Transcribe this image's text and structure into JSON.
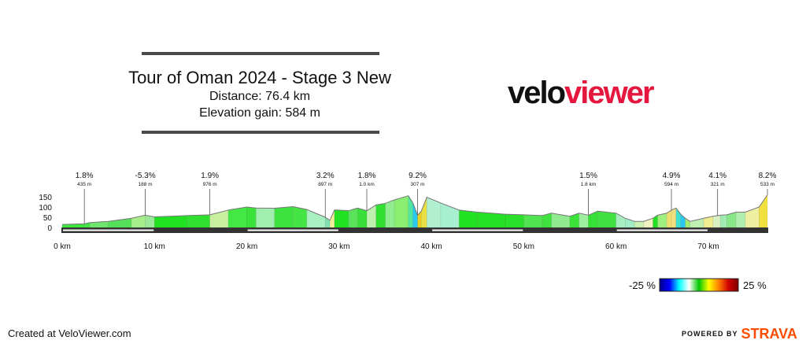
{
  "header": {
    "title": "Tour of Oman 2024 - Stage 3 New",
    "distance": "Distance: 76.4 km",
    "elevation_gain": "Elevation gain: 584 m"
  },
  "logo": {
    "part1": "velo",
    "part2": "viewer"
  },
  "footer": {
    "created": "Created at VeloViewer.com",
    "powered": "POWERED BY",
    "brand": "STRAVA"
  },
  "colors": {
    "logo_red": "#e5173f",
    "strava_orange": "#fc4c02",
    "axis": "#333333"
  },
  "gradient_legend": {
    "min_label": "-25 %",
    "max_label": "25 %"
  },
  "chart_data": {
    "type": "area",
    "title": "Tour of Oman 2024 - Stage 3 New",
    "xlabel": "",
    "ylabel": "",
    "xlim": [
      0,
      76.4
    ],
    "ylim": [
      0,
      150
    ],
    "y_ticks": [
      "0",
      "50",
      "100",
      "150"
    ],
    "x_ticks": [
      {
        "v": 0,
        "label": "0 km"
      },
      {
        "v": 10,
        "label": "10 km"
      },
      {
        "v": 20,
        "label": "20 km"
      },
      {
        "v": 30,
        "label": "30 km"
      },
      {
        "v": 40,
        "label": "40 km"
      },
      {
        "v": 50,
        "label": "50 km"
      },
      {
        "v": 60,
        "label": "60 km"
      },
      {
        "v": 70,
        "label": "70 km"
      }
    ],
    "points": [
      [
        0,
        15
      ],
      [
        2.4,
        18
      ],
      [
        3,
        24
      ],
      [
        5,
        30
      ],
      [
        7.5,
        45
      ],
      [
        9,
        60
      ],
      [
        10,
        52
      ],
      [
        13.5,
        58
      ],
      [
        16,
        62
      ],
      [
        18,
        85
      ],
      [
        20,
        100
      ],
      [
        21,
        95
      ],
      [
        23,
        94
      ],
      [
        25,
        102
      ],
      [
        26.5,
        88
      ],
      [
        28.5,
        50
      ],
      [
        29,
        35
      ],
      [
        29.5,
        86
      ],
      [
        31,
        82
      ],
      [
        32,
        95
      ],
      [
        33,
        82
      ],
      [
        34,
        110
      ],
      [
        35,
        118
      ],
      [
        36,
        135
      ],
      [
        37.5,
        155
      ],
      [
        38,
        120
      ],
      [
        38.5,
        60
      ],
      [
        38.9,
        80
      ],
      [
        39.5,
        148
      ],
      [
        41,
        120
      ],
      [
        43,
        85
      ],
      [
        45,
        75
      ],
      [
        48,
        65
      ],
      [
        50,
        62
      ],
      [
        52,
        58
      ],
      [
        53,
        70
      ],
      [
        55,
        55
      ],
      [
        56,
        70
      ],
      [
        57,
        60
      ],
      [
        58,
        80
      ],
      [
        60,
        70
      ],
      [
        61,
        45
      ],
      [
        62,
        30
      ],
      [
        63,
        30
      ],
      [
        64,
        45
      ],
      [
        64.5,
        60
      ],
      [
        65.5,
        70
      ],
      [
        66,
        85
      ],
      [
        66.5,
        95
      ],
      [
        67,
        65
      ],
      [
        67.5,
        45
      ],
      [
        68,
        30
      ],
      [
        69.5,
        45
      ],
      [
        70.5,
        55
      ],
      [
        71.3,
        60
      ],
      [
        72,
        62
      ],
      [
        73,
        75
      ],
      [
        74,
        75
      ],
      [
        75.5,
        100
      ],
      [
        76.4,
        160
      ]
    ],
    "segments": [
      {
        "x0": 0,
        "x1": 2.4,
        "color": "#3ce63c"
      },
      {
        "x0": 2.4,
        "x1": 3,
        "color": "#40e642"
      },
      {
        "x0": 3,
        "x1": 5,
        "color": "#6ee66e"
      },
      {
        "x0": 5,
        "x1": 7.5,
        "color": "#55e05a"
      },
      {
        "x0": 7.5,
        "x1": 9,
        "color": "#a6ee8a"
      },
      {
        "x0": 9,
        "x1": 10,
        "color": "#9be89a"
      },
      {
        "x0": 10,
        "x1": 13.5,
        "color": "#22e022"
      },
      {
        "x0": 13.5,
        "x1": 16,
        "color": "#30e030"
      },
      {
        "x0": 16,
        "x1": 18,
        "color": "#c8f0a0"
      },
      {
        "x0": 18,
        "x1": 20,
        "color": "#44e844"
      },
      {
        "x0": 20,
        "x1": 21,
        "color": "#3ae23a"
      },
      {
        "x0": 21,
        "x1": 23,
        "color": "#a0eeb0"
      },
      {
        "x0": 23,
        "x1": 25,
        "color": "#3ee23e"
      },
      {
        "x0": 25,
        "x1": 26.5,
        "color": "#44e444"
      },
      {
        "x0": 26.5,
        "x1": 28.5,
        "color": "#a8f0c0"
      },
      {
        "x0": 28.5,
        "x1": 29,
        "color": "#7ee0b0"
      },
      {
        "x0": 29,
        "x1": 29.5,
        "color": "#f0ee9a"
      },
      {
        "x0": 29.5,
        "x1": 31,
        "color": "#22e022"
      },
      {
        "x0": 31,
        "x1": 32,
        "color": "#5ae25a"
      },
      {
        "x0": 32,
        "x1": 33,
        "color": "#3ae03a"
      },
      {
        "x0": 33,
        "x1": 34,
        "color": "#c0f0b0"
      },
      {
        "x0": 34,
        "x1": 35,
        "color": "#30e030"
      },
      {
        "x0": 35,
        "x1": 36,
        "color": "#90ee90"
      },
      {
        "x0": 36,
        "x1": 37.5,
        "color": "#8aee70"
      },
      {
        "x0": 37.5,
        "x1": 38,
        "color": "#50e8a0"
      },
      {
        "x0": 38,
        "x1": 38.5,
        "color": "#28c8f0"
      },
      {
        "x0": 38.5,
        "x1": 38.9,
        "color": "#e8d020"
      },
      {
        "x0": 38.9,
        "x1": 39.5,
        "color": "#e8e040"
      },
      {
        "x0": 39.5,
        "x1": 41,
        "color": "#b0f0d0"
      },
      {
        "x0": 41,
        "x1": 43,
        "color": "#a8eed0"
      },
      {
        "x0": 43,
        "x1": 45,
        "color": "#22e022"
      },
      {
        "x0": 45,
        "x1": 48,
        "color": "#26e026"
      },
      {
        "x0": 48,
        "x1": 50,
        "color": "#2ae02a"
      },
      {
        "x0": 50,
        "x1": 52,
        "color": "#50e450"
      },
      {
        "x0": 52,
        "x1": 53,
        "color": "#40e240"
      },
      {
        "x0": 53,
        "x1": 55,
        "color": "#90ea90"
      },
      {
        "x0": 55,
        "x1": 56,
        "color": "#3ae23a"
      },
      {
        "x0": 56,
        "x1": 57,
        "color": "#a0eea0"
      },
      {
        "x0": 57,
        "x1": 58,
        "color": "#36e036"
      },
      {
        "x0": 58,
        "x1": 60,
        "color": "#40e040"
      },
      {
        "x0": 60,
        "x1": 61,
        "color": "#a8eec0"
      },
      {
        "x0": 61,
        "x1": 62,
        "color": "#a0eec8"
      },
      {
        "x0": 62,
        "x1": 63,
        "color": "#c8f0b0"
      },
      {
        "x0": 63,
        "x1": 64,
        "color": "#f0f0c0"
      },
      {
        "x0": 64,
        "x1": 64.5,
        "color": "#22e022"
      },
      {
        "x0": 64.5,
        "x1": 65.5,
        "color": "#a0ee80"
      },
      {
        "x0": 65.5,
        "x1": 66,
        "color": "#f0e070"
      },
      {
        "x0": 66,
        "x1": 66.5,
        "color": "#f0e080"
      },
      {
        "x0": 66.5,
        "x1": 67,
        "color": "#40e0d0"
      },
      {
        "x0": 67,
        "x1": 67.5,
        "color": "#28c8f0"
      },
      {
        "x0": 67.5,
        "x1": 68,
        "color": "#a0ec70"
      },
      {
        "x0": 68,
        "x1": 69.5,
        "color": "#c0f0b0"
      },
      {
        "x0": 69.5,
        "x1": 70.5,
        "color": "#f0ec90"
      },
      {
        "x0": 70.5,
        "x1": 71.3,
        "color": "#d8f0c0"
      },
      {
        "x0": 71.3,
        "x1": 72,
        "color": "#a0ecb0"
      },
      {
        "x0": 72,
        "x1": 73,
        "color": "#88e888"
      },
      {
        "x0": 73,
        "x1": 74,
        "color": "#b0eeb0"
      },
      {
        "x0": 74,
        "x1": 75.5,
        "color": "#eef0a0"
      },
      {
        "x0": 75.5,
        "x1": 76.4,
        "color": "#f0e040"
      }
    ],
    "annotations": [
      {
        "x": 2.4,
        "grade": "1.8%",
        "length": "435 m"
      },
      {
        "x": 9,
        "grade": "-5.3%",
        "length": "188 m"
      },
      {
        "x": 16,
        "grade": "1.9%",
        "length": "976 m"
      },
      {
        "x": 28.5,
        "grade": "3.2%",
        "length": "897 m"
      },
      {
        "x": 33,
        "grade": "1.8%",
        "length": "1.0 km"
      },
      {
        "x": 38.5,
        "grade": "9.2%",
        "length": "307 m"
      },
      {
        "x": 57,
        "grade": "1.5%",
        "length": "1.8 km"
      },
      {
        "x": 66,
        "grade": "4.9%",
        "length": "594 m"
      },
      {
        "x": 71,
        "grade": "4.1%",
        "length": "321 m"
      },
      {
        "x": 76.4,
        "grade": "8.2%",
        "length": "533 m"
      }
    ],
    "legend": {
      "min": -25,
      "max": 25,
      "stops": [
        "#00008b",
        "#0000ff",
        "#00ffff",
        "#ffffff",
        "#00c800",
        "#ffff00",
        "#ff8000",
        "#d00000",
        "#800000"
      ]
    }
  }
}
